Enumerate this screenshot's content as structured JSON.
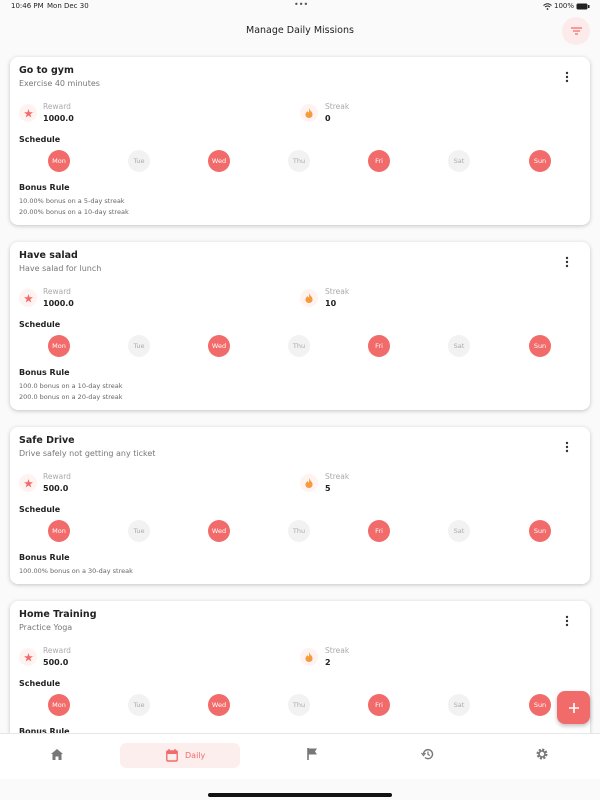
{
  "status_bar": {
    "time": "10:46 PM",
    "date": "Mon Dec 30",
    "battery": "100%"
  },
  "header": {
    "title": "Manage Daily Missions"
  },
  "missions": [
    {
      "title": "Go to gym",
      "description": "Exercise 40 minutes",
      "reward_label": "Reward",
      "reward": "1000.0",
      "streak_label": "Streak",
      "streak": "0",
      "schedule_label": "Schedule",
      "days": [
        {
          "label": "Mon",
          "active": true
        },
        {
          "label": "Tue",
          "active": false
        },
        {
          "label": "Wed",
          "active": true
        },
        {
          "label": "Thu",
          "active": false
        },
        {
          "label": "Fri",
          "active": true
        },
        {
          "label": "Sat",
          "active": false
        },
        {
          "label": "Sun",
          "active": true
        }
      ],
      "bonus_label": "Bonus Rule",
      "bonus_rules": [
        "10.00% bonus on a 5-day streak",
        "20.00% bonus on a 10-day streak"
      ]
    },
    {
      "title": "Have salad",
      "description": "Have salad for lunch",
      "reward_label": "Reward",
      "reward": "1000.0",
      "streak_label": "Streak",
      "streak": "10",
      "schedule_label": "Schedule",
      "days": [
        {
          "label": "Mon",
          "active": true
        },
        {
          "label": "Tue",
          "active": false
        },
        {
          "label": "Wed",
          "active": true
        },
        {
          "label": "Thu",
          "active": false
        },
        {
          "label": "Fri",
          "active": true
        },
        {
          "label": "Sat",
          "active": false
        },
        {
          "label": "Sun",
          "active": true
        }
      ],
      "bonus_label": "Bonus Rule",
      "bonus_rules": [
        "100.0 bonus on a 10-day streak",
        "200.0 bonus on a 20-day streak"
      ]
    },
    {
      "title": "Safe Drive",
      "description": "Drive safely not getting any ticket",
      "reward_label": "Reward",
      "reward": "500.0",
      "streak_label": "Streak",
      "streak": "5",
      "schedule_label": "Schedule",
      "days": [
        {
          "label": "Mon",
          "active": true
        },
        {
          "label": "Tue",
          "active": false
        },
        {
          "label": "Wed",
          "active": true
        },
        {
          "label": "Thu",
          "active": false
        },
        {
          "label": "Fri",
          "active": true
        },
        {
          "label": "Sat",
          "active": false
        },
        {
          "label": "Sun",
          "active": true
        }
      ],
      "bonus_label": "Bonus Rule",
      "bonus_rules": [
        "100.00% bonus on a 30-day streak"
      ]
    },
    {
      "title": "Home Training",
      "description": "Practice Yoga",
      "reward_label": "Reward",
      "reward": "500.0",
      "streak_label": "Streak",
      "streak": "2",
      "schedule_label": "Schedule",
      "days": [
        {
          "label": "Mon",
          "active": true
        },
        {
          "label": "Tue",
          "active": false
        },
        {
          "label": "Wed",
          "active": true
        },
        {
          "label": "Thu",
          "active": false
        },
        {
          "label": "Fri",
          "active": true
        },
        {
          "label": "Sat",
          "active": false
        },
        {
          "label": "Sun",
          "active": true
        }
      ],
      "bonus_label": "Bonus Rule",
      "bonus_rules": []
    }
  ],
  "nav": {
    "active_label": "Daily"
  }
}
